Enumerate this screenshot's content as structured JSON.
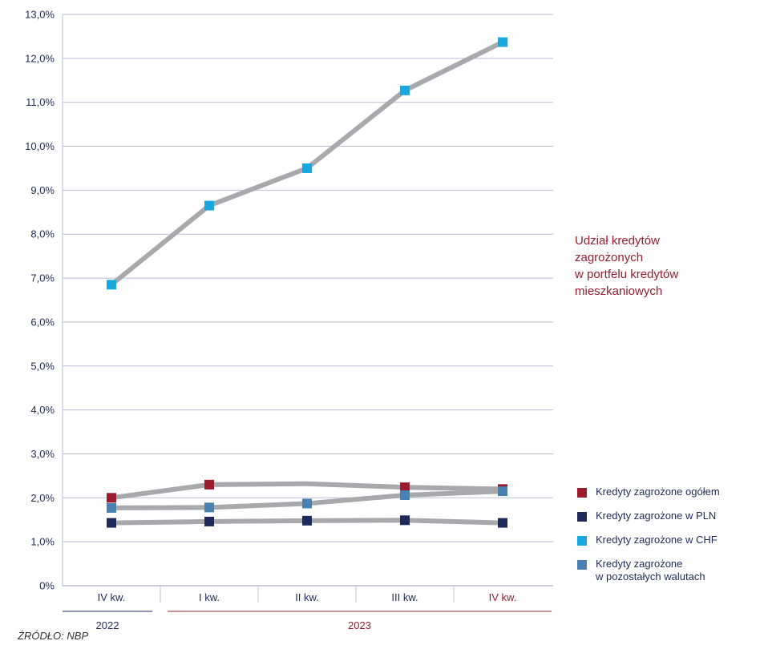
{
  "chart_data": {
    "type": "line",
    "title": "",
    "xlabel": "",
    "ylabel": "",
    "categories": [
      "IV kw.",
      "I kw.",
      "II kw.",
      "III kw.",
      "IV kw."
    ],
    "category_colors": [
      "#1f2a5a",
      "#1f2a5a",
      "#1f2a5a",
      "#1f2a5a",
      "#9b1c2e"
    ],
    "years": [
      {
        "label": "2022",
        "color": "#1f2a5a",
        "span": [
          0,
          0
        ]
      },
      {
        "label": "2023",
        "color": "#9b1c2e",
        "span": [
          1,
          4
        ]
      }
    ],
    "ylim": [
      0,
      13
    ],
    "yticks": [
      0,
      1,
      2,
      3,
      4,
      5,
      6,
      7,
      8,
      9,
      10,
      11,
      12,
      13
    ],
    "ytick_labels": [
      "0%",
      "1,0%",
      "2,0%",
      "3,0%",
      "4,0%",
      "5,0%",
      "6,0%",
      "7,0%",
      "8,0%",
      "9,0%",
      "10,0%",
      "11,0%",
      "12,0%",
      "13,0%"
    ],
    "grid": true,
    "line_color": "#a7a9ac",
    "series": [
      {
        "name": "Kredyty zagrożone ogółem",
        "color": "#9b1c2e",
        "values": [
          2.0,
          2.3,
          2.32,
          2.24,
          2.2
        ]
      },
      {
        "name": "Kredyty zagrożone w PLN",
        "color": "#1f2a5a",
        "values": [
          1.43,
          1.46,
          1.48,
          1.49,
          1.43
        ]
      },
      {
        "name": "Kredyty zagrożone w CHF",
        "color": "#1aa7e0",
        "values": [
          6.85,
          8.65,
          9.5,
          11.27,
          12.37
        ]
      },
      {
        "name": "Kredyty zagrożone\nw pozostałych walutach",
        "color": "#4a81b1",
        "values": [
          1.77,
          1.78,
          1.87,
          2.06,
          2.15
        ]
      }
    ],
    "marker_hidden": [
      [
        false,
        false,
        true,
        false,
        false
      ],
      [
        false,
        false,
        false,
        false,
        false
      ],
      [
        false,
        false,
        false,
        false,
        false
      ],
      [
        false,
        false,
        false,
        false,
        false
      ]
    ],
    "annotation": "Udział kredytów\nzagrożonych\nw portfelu kredytów\nmieszkaniowych",
    "legend_placement": "bottom-right"
  },
  "source": "ŹRÓDŁO: NBP"
}
